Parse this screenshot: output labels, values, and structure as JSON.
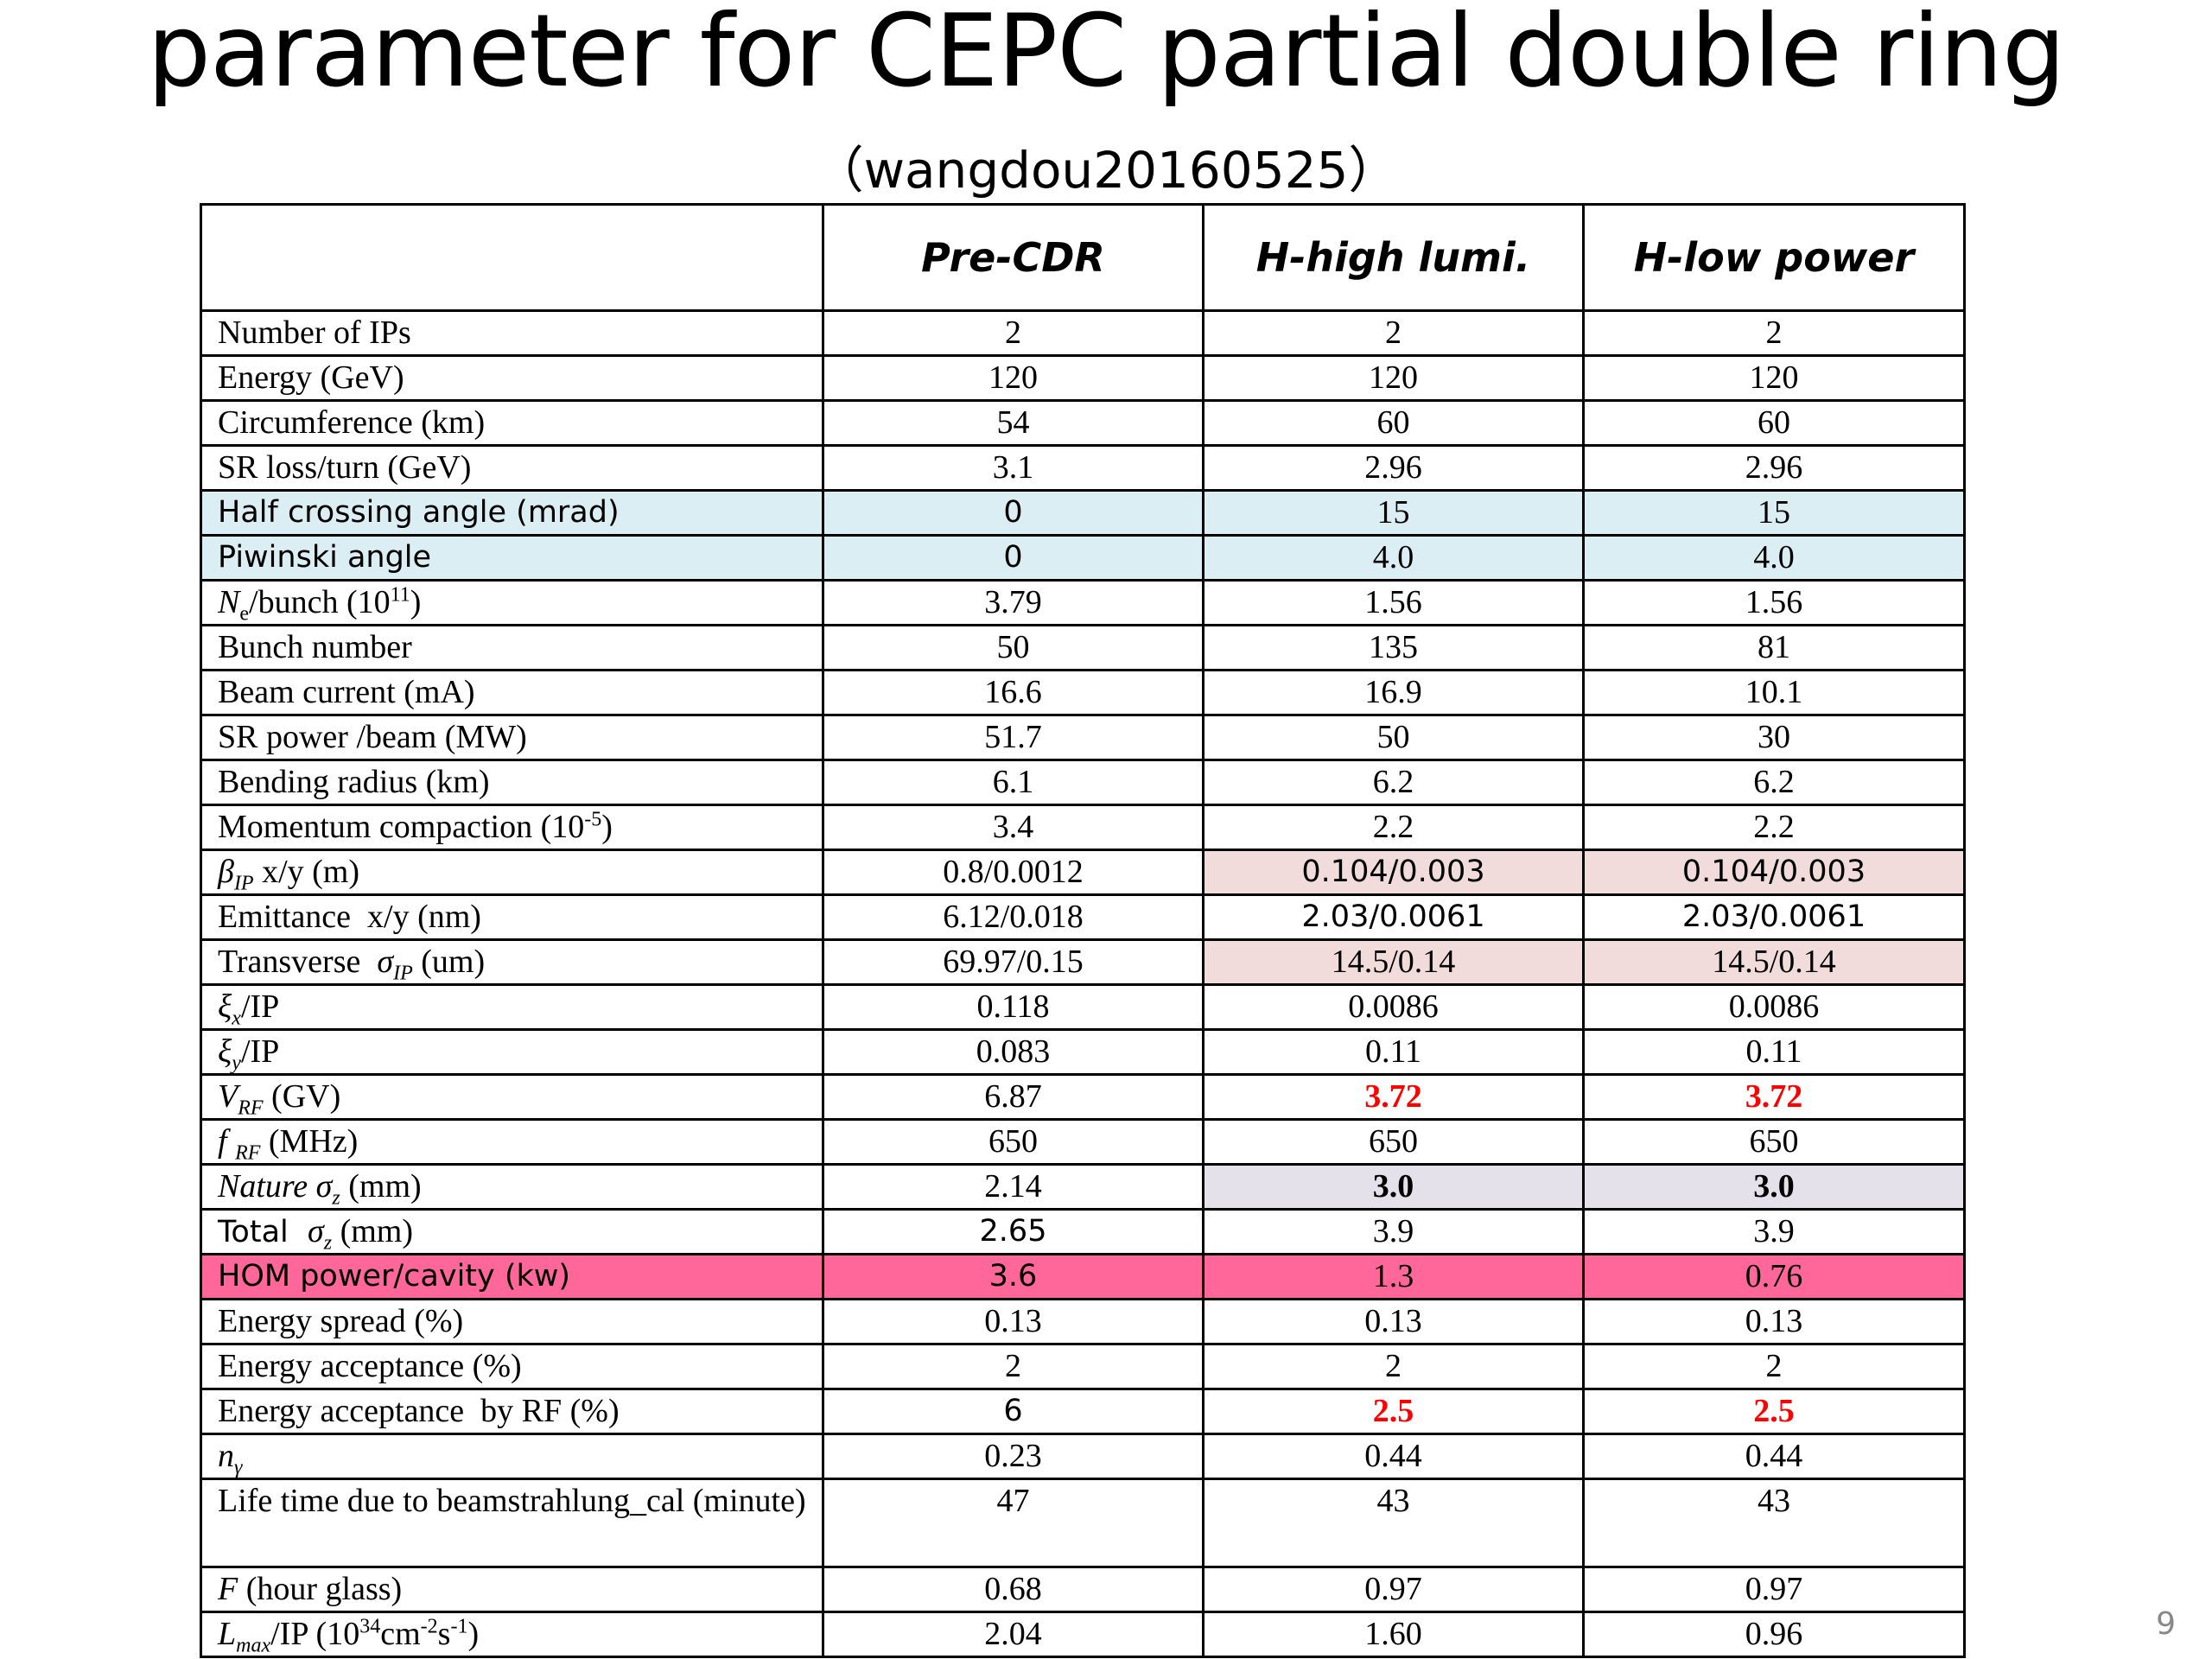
{
  "title": "parameter for CEPC partial double ring",
  "subtitle": "（wangdou20160525）",
  "page_number": "9",
  "columns": [
    "",
    "Pre-CDR",
    "H-high lumi.",
    "H-low power"
  ],
  "rows": [
    {
      "label": "Number of IPs",
      "values": [
        "2",
        "2",
        "2"
      ]
    },
    {
      "label": "Energy (GeV)",
      "values": [
        "120",
        "120",
        "120"
      ]
    },
    {
      "label": "Circumference (km)",
      "values": [
        "54",
        "60",
        "60"
      ]
    },
    {
      "label": "SR loss/turn (GeV)",
      "values": [
        "3.1",
        "2.96",
        "2.96"
      ]
    },
    {
      "label": "Half crossing angle (mrad)",
      "values": [
        "0",
        "15",
        "15"
      ],
      "highlight": "#dbeef4"
    },
    {
      "label": "Piwinski angle",
      "values": [
        "0",
        "4.0",
        "4.0"
      ],
      "highlight": "#dbeef4"
    },
    {
      "label_parts": [
        "N",
        "e",
        "/bunch (10",
        "11",
        ")"
      ],
      "values": [
        "3.79",
        "1.56",
        "1.56"
      ]
    },
    {
      "label": "Bunch number",
      "values": [
        "50",
        "135",
        "81"
      ]
    },
    {
      "label": "Beam current (mA)",
      "values": [
        "16.6",
        "16.9",
        "10.1"
      ]
    },
    {
      "label": "SR power /beam (MW)",
      "values": [
        "51.7",
        "50",
        "30"
      ]
    },
    {
      "label": "Bending radius (km)",
      "values": [
        "6.1",
        "6.2",
        "6.2"
      ]
    },
    {
      "label_parts": [
        "Momentum compaction (10",
        "-5",
        ")"
      ],
      "values": [
        "3.4",
        "2.2",
        "2.2"
      ]
    },
    {
      "label_parts": [
        "β",
        "IP",
        " x/y (m)"
      ],
      "values": [
        "0.8/0.0012",
        "0.104/0.003",
        "0.104/0.003"
      ],
      "highlight": "#f2dcdb"
    },
    {
      "label": "Emittance  x/y (nm)",
      "values": [
        "6.12/0.018",
        "2.03/0.0061",
        "2.03/0.0061"
      ]
    },
    {
      "label_parts": [
        "Transverse  ",
        "σ",
        "IP",
        " (um)"
      ],
      "values": [
        "69.97/0.15",
        "14.5/0.14",
        "14.5/0.14"
      ],
      "highlight": "#f2dcdb"
    },
    {
      "label_parts": [
        "ξ",
        "x",
        "/IP"
      ],
      "values": [
        "0.118",
        "0.0086",
        "0.0086"
      ]
    },
    {
      "label_parts": [
        "ξ",
        "y",
        "/IP"
      ],
      "values": [
        "0.083",
        "0.11",
        "0.11"
      ]
    },
    {
      "label_parts": [
        "V",
        "RF",
        " (GV)"
      ],
      "values": [
        "6.87",
        "3.72",
        "3.72"
      ],
      "red": "#ff0000"
    },
    {
      "label_parts": [
        "f ",
        "RF",
        " (MHz)"
      ],
      "values": [
        "650",
        "650",
        "650"
      ]
    },
    {
      "label_parts": [
        "Nature ",
        "σ",
        "z",
        " (mm)"
      ],
      "values": [
        "2.14",
        "3.0",
        "3.0"
      ],
      "highlight": "#e4e1ea"
    },
    {
      "label_parts": [
        "Total  ",
        "σ",
        "z",
        " (mm)"
      ],
      "values": [
        "2.65",
        "3.9",
        "3.9"
      ]
    },
    {
      "label": "HOM power/cavity (kw)",
      "values": [
        "3.6",
        "1.3",
        "0.76"
      ],
      "highlight": "#ff6699"
    },
    {
      "label": "Energy spread (%)",
      "values": [
        "0.13",
        "0.13",
        "0.13"
      ]
    },
    {
      "label": "Energy acceptance (%)",
      "values": [
        "2",
        "2",
        "2"
      ]
    },
    {
      "label": "Energy acceptance  by RF (%)",
      "values": [
        "6",
        "2.5",
        "2.5"
      ],
      "red": "#ff0000"
    },
    {
      "label_parts": [
        "n",
        "γ"
      ],
      "values": [
        "0.23",
        "0.44",
        "0.44"
      ]
    },
    {
      "label": "Life time due to beamstrahlung_cal (minute)",
      "values": [
        "47",
        "43",
        "43"
      ]
    },
    {
      "label_parts": [
        "F",
        " (hour glass)"
      ],
      "values": [
        "0.68",
        "0.97",
        "0.97"
      ]
    },
    {
      "label_parts": [
        "L",
        "max",
        "/IP (10",
        "34",
        "cm",
        "-2",
        "s",
        "-1",
        ")"
      ],
      "values": [
        "2.04",
        "1.60",
        "0.96"
      ]
    }
  ]
}
